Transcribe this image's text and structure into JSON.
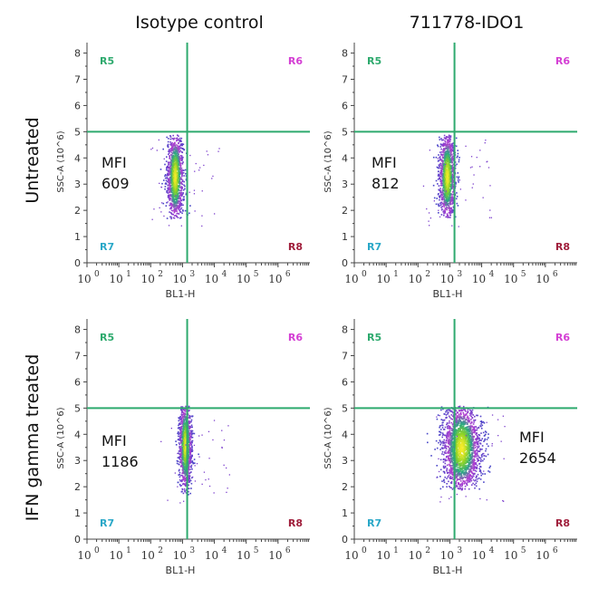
{
  "column_titles": [
    "Isotype control",
    "711778-IDO1"
  ],
  "row_titles": [
    "Untreated",
    "IFN gamma treated"
  ],
  "chart_data": [
    {
      "type": "scatter",
      "row": "Untreated",
      "column": "Isotype control",
      "xlabel": "BL1-H",
      "ylabel": "SSC-A (10^6)",
      "x_scale": "log",
      "xlim": [
        1,
        10000000
      ],
      "ylim": [
        0,
        8.4
      ],
      "x_ticks": [
        "10",
        "10",
        "10",
        "10",
        "10",
        "10",
        "10"
      ],
      "x_tick_exponents": [
        "0",
        "1",
        "2",
        "3",
        "4",
        "5",
        "6"
      ],
      "y_ticks": [
        "0",
        "1",
        "2",
        "3",
        "4",
        "5",
        "6",
        "7",
        "8"
      ],
      "gate_x": 1400,
      "gate_y": 5,
      "quadrants": [
        "R5",
        "R6",
        "R7",
        "R8"
      ],
      "annotation": {
        "label": "MFI",
        "value": "609"
      },
      "population": {
        "x_center_log": 2.75,
        "x_spread_log": 0.13,
        "y_center": 3.3,
        "y_spread": 0.8,
        "y_min": 1.7,
        "y_max": 4.9,
        "n": 1300
      }
    },
    {
      "type": "scatter",
      "row": "Untreated",
      "column": "711778-IDO1",
      "xlabel": "BL1-H",
      "ylabel": "SSC-A (10^6)",
      "x_scale": "log",
      "xlim": [
        1,
        10000000
      ],
      "ylim": [
        0,
        8.4
      ],
      "x_ticks": [
        "10",
        "10",
        "10",
        "10",
        "10",
        "10",
        "10"
      ],
      "x_tick_exponents": [
        "0",
        "1",
        "2",
        "3",
        "4",
        "5",
        "6"
      ],
      "y_ticks": [
        "0",
        "1",
        "2",
        "3",
        "4",
        "5",
        "6",
        "7",
        "8"
      ],
      "gate_x": 1400,
      "gate_y": 5,
      "quadrants": [
        "R5",
        "R6",
        "R7",
        "R8"
      ],
      "annotation": {
        "label": "MFI",
        "value": "812"
      },
      "population": {
        "x_center_log": 2.9,
        "x_spread_log": 0.13,
        "y_center": 3.3,
        "y_spread": 0.8,
        "y_min": 1.7,
        "y_max": 4.9,
        "n": 1300
      }
    },
    {
      "type": "scatter",
      "row": "IFN gamma treated",
      "column": "Isotype control",
      "xlabel": "BL1-H",
      "ylabel": "SSC-A (10^6)",
      "x_scale": "log",
      "xlim": [
        1,
        10000000
      ],
      "ylim": [
        0,
        8.4
      ],
      "x_ticks": [
        "10",
        "10",
        "10",
        "10",
        "10",
        "10",
        "10"
      ],
      "x_tick_exponents": [
        "0",
        "1",
        "2",
        "3",
        "4",
        "5",
        "6"
      ],
      "y_ticks": [
        "0",
        "1",
        "2",
        "3",
        "4",
        "5",
        "6",
        "7",
        "8"
      ],
      "gate_x": 1400,
      "gate_y": 5,
      "quadrants": [
        "R5",
        "R6",
        "R7",
        "R8"
      ],
      "annotation": {
        "label": "MFI",
        "value": "1186"
      },
      "population": {
        "x_center_log": 3.07,
        "x_spread_log": 0.1,
        "y_center": 3.6,
        "y_spread": 0.8,
        "y_min": 1.7,
        "y_max": 5.1,
        "n": 1300
      }
    },
    {
      "type": "scatter",
      "row": "IFN gamma treated",
      "column": "711778-IDO1",
      "xlabel": "BL1-H",
      "ylabel": "SSC-A (10^6)",
      "x_scale": "log",
      "xlim": [
        1,
        10000000
      ],
      "ylim": [
        0,
        8.4
      ],
      "x_ticks": [
        "10",
        "10",
        "10",
        "10",
        "10",
        "10",
        "10"
      ],
      "x_tick_exponents": [
        "0",
        "1",
        "2",
        "3",
        "4",
        "5",
        "6"
      ],
      "y_ticks": [
        "0",
        "1",
        "2",
        "3",
        "4",
        "5",
        "6",
        "7",
        "8"
      ],
      "gate_x": 1400,
      "gate_y": 5,
      "quadrants": [
        "R5",
        "R6",
        "R7",
        "R8"
      ],
      "annotation": {
        "label": "MFI",
        "value": "2654"
      },
      "population": {
        "x_center_log": 3.35,
        "x_spread_log": 0.3,
        "y_center": 3.5,
        "y_spread": 0.8,
        "y_min": 1.9,
        "y_max": 5.1,
        "n": 2200
      }
    }
  ],
  "colors": {
    "gate_line": "#2eaa6e",
    "axis": "#444444",
    "R5": "#2eaa6e",
    "R6": "#d43fd4",
    "R7": "#2aa8c8",
    "R8": "#a01f3c"
  }
}
